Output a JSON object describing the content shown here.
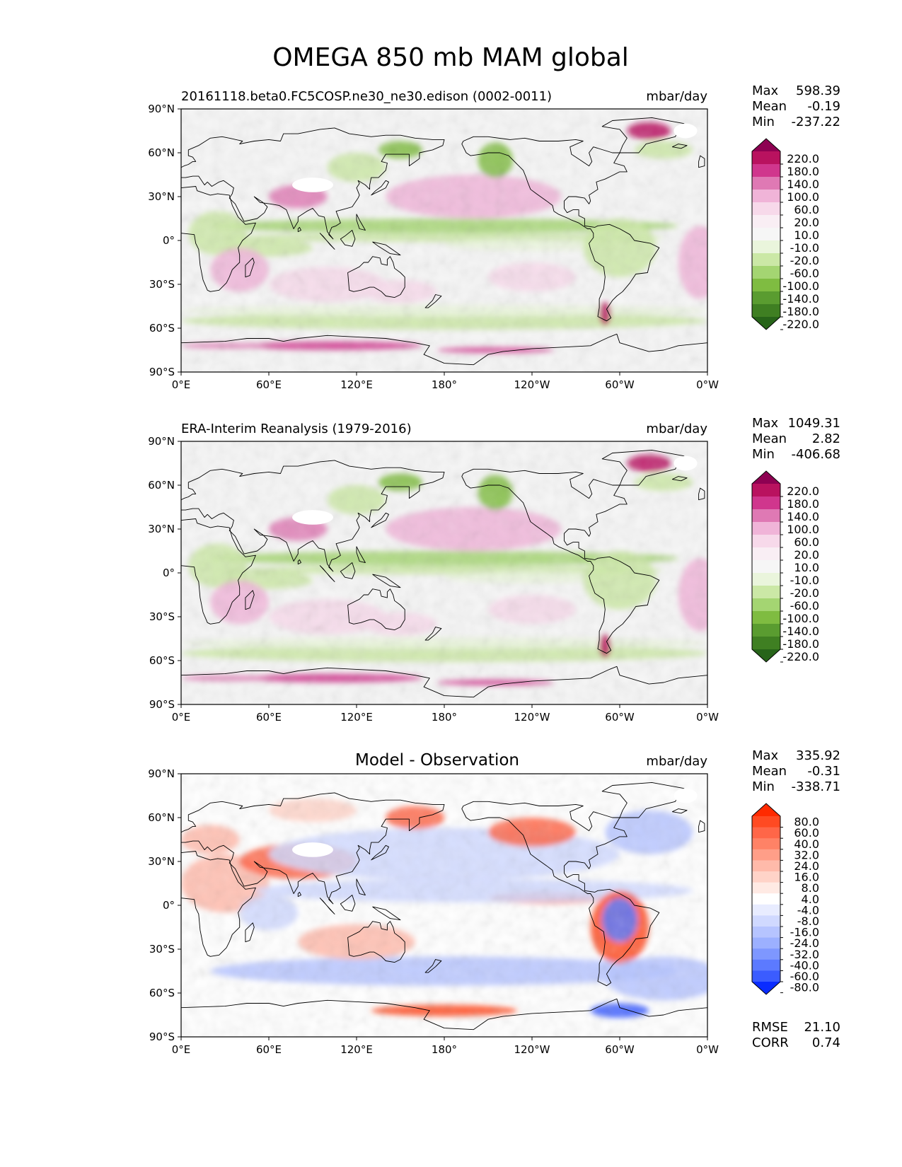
{
  "figure_title": "OMEGA 850 mb MAM global",
  "panels": [
    {
      "title_left": "20161118.beta0.FC5COSP.ne30_ne30.edison (0002-0011)",
      "title_center": "",
      "units": "mbar/day",
      "stats": [
        {
          "label": "Max",
          "value": "598.39"
        },
        {
          "label": "Mean",
          "value": "-0.19"
        },
        {
          "label": "Min",
          "value": "-237.22"
        }
      ],
      "colorbar": "omega",
      "footer": []
    },
    {
      "title_left": "ERA-Interim Reanalysis (1979-2016)",
      "title_center": "",
      "units": "mbar/day",
      "stats": [
        {
          "label": "Max",
          "value": "1049.31"
        },
        {
          "label": "Mean",
          "value": "2.82"
        },
        {
          "label": "Min",
          "value": "-406.68"
        }
      ],
      "colorbar": "omega",
      "footer": []
    },
    {
      "title_left": "",
      "title_center": "Model - Observation",
      "units": "mbar/day",
      "stats": [
        {
          "label": "Max",
          "value": "335.92"
        },
        {
          "label": "Mean",
          "value": "-0.31"
        },
        {
          "label": "Min",
          "value": "-338.71"
        }
      ],
      "colorbar": "diff",
      "footer": [
        {
          "label": "RMSE",
          "value": "21.10"
        },
        {
          "label": "CORR",
          "value": "0.74"
        }
      ]
    }
  ],
  "colorbars": {
    "omega": {
      "labels": [
        "220.0",
        "180.0",
        "140.0",
        "100.0",
        "60.0",
        "20.0",
        "10.0",
        "-10.0",
        "-20.0",
        "-60.0",
        "-100.0",
        "-140.0",
        "-180.0",
        "-220.0"
      ],
      "colors": [
        "#8e0152",
        "#b9125f",
        "#d0368d",
        "#df79b4",
        "#f0b4d8",
        "#f7d9ea",
        "#f9eef4",
        "#f6f6f6",
        "#eaf5dc",
        "#cbe8a6",
        "#a4d572",
        "#7fbc41",
        "#5a9c30",
        "#3f7f22",
        "#276419"
      ]
    },
    "diff": {
      "labels": [
        "80.0",
        "60.0",
        "40.0",
        "32.0",
        "24.0",
        "16.0",
        "8.0",
        "4.0",
        "-4.0",
        "-8.0",
        "-16.0",
        "-24.0",
        "-32.0",
        "-40.0",
        "-60.0",
        "-80.0"
      ],
      "colors": [
        "#ff2a00",
        "#ff4a22",
        "#ff6648",
        "#ff8266",
        "#ff9e88",
        "#ffbaaa",
        "#ffd3c8",
        "#ffeae4",
        "#ffffff",
        "#e8ecff",
        "#d0d9ff",
        "#b6c4ff",
        "#9cb0ff",
        "#7e97ff",
        "#5c7aff",
        "#3b5cff",
        "#0a2cff"
      ]
    }
  },
  "axes": {
    "x_ticks": [
      "0°E",
      "60°E",
      "120°E",
      "180°",
      "120°W",
      "60°W",
      "0°W"
    ],
    "y_ticks": [
      "90°N",
      "60°N",
      "30°N",
      "0°",
      "30°S",
      "60°S",
      "90°S"
    ]
  },
  "chart_data": {
    "type": "heatmap",
    "title": "OMEGA 850 mb MAM global",
    "variable": "OMEGA 850 mb",
    "season": "MAM",
    "units": "mbar/day",
    "x_range": [
      0,
      360
    ],
    "y_range": [
      -90,
      90
    ],
    "grid": false
  }
}
